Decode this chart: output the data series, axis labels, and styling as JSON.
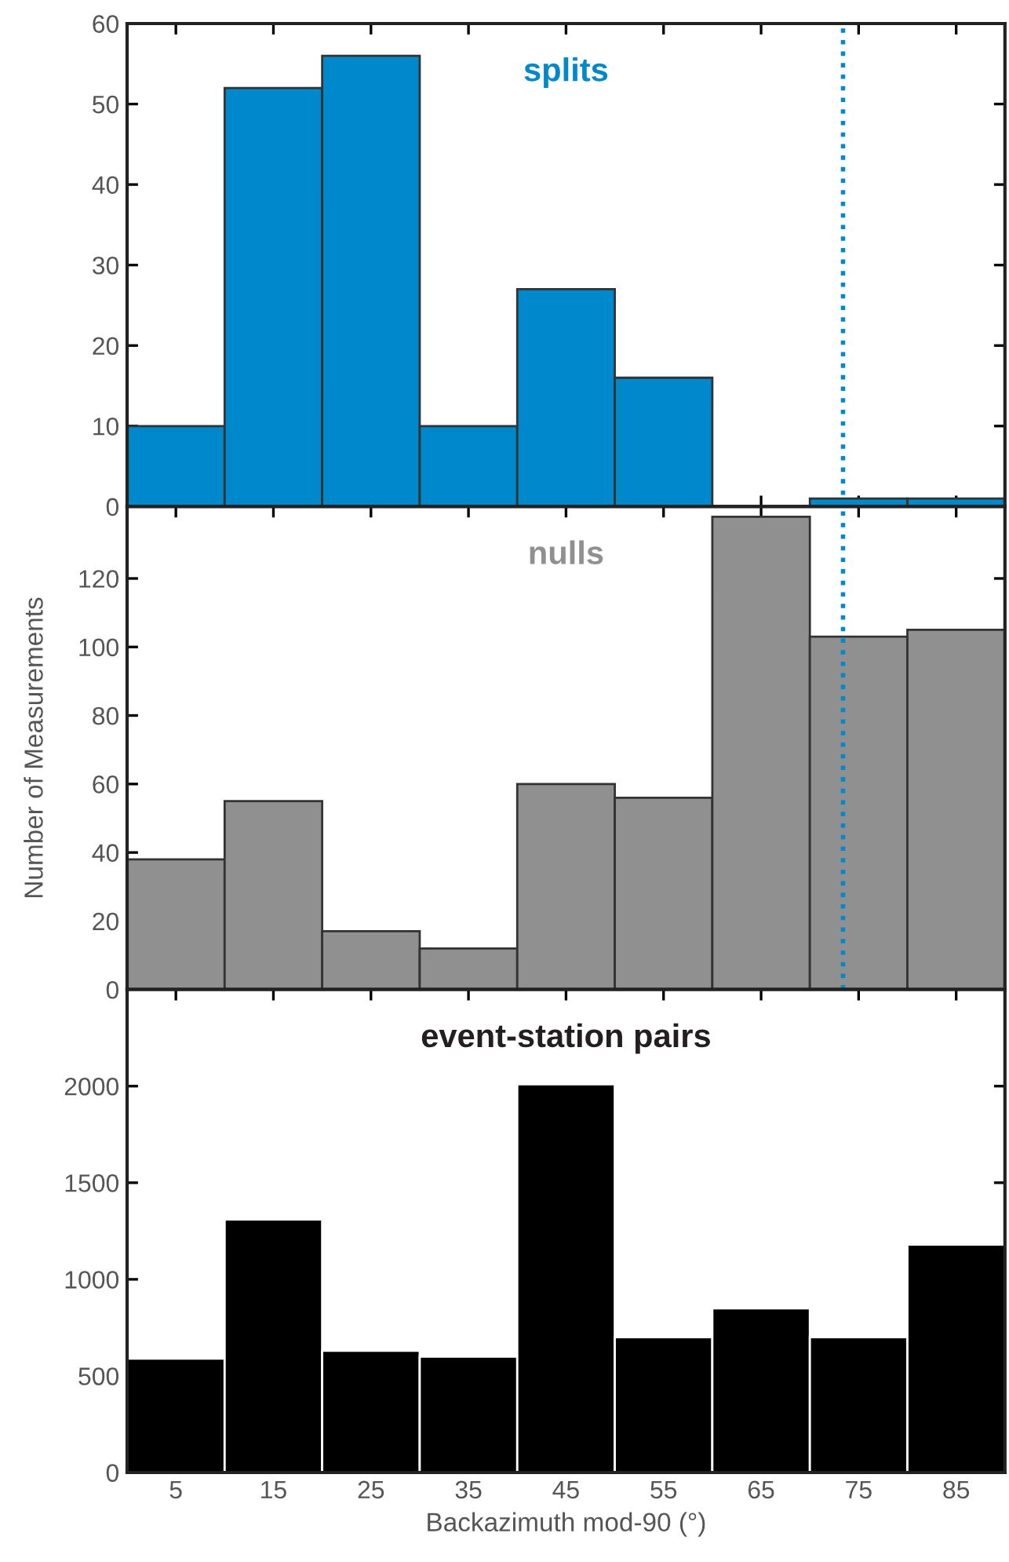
{
  "chart_data": [
    {
      "type": "histogram",
      "title": "splits",
      "bins": [
        0,
        10,
        20,
        30,
        40,
        50,
        60,
        70,
        80,
        90
      ],
      "values": [
        10,
        52,
        56,
        10,
        27,
        16,
        0,
        1,
        1
      ],
      "color": "#0088cc",
      "xlim": [
        0,
        90
      ],
      "xticks": [
        5,
        15,
        25,
        35,
        45,
        55,
        65,
        75,
        85
      ],
      "ylim": [
        0,
        60
      ],
      "yticks": [
        0,
        10,
        20,
        30,
        40,
        50,
        60
      ],
      "tick_labels": "y",
      "ref_lines": [
        {
          "axis": "x",
          "value": 73.4,
          "color": "#0088cc",
          "line_style": "dotted"
        }
      ]
    },
    {
      "type": "histogram",
      "title": "nulls",
      "ylabel": "Number of Measurements",
      "bins": [
        0,
        10,
        20,
        30,
        40,
        50,
        60,
        70,
        80,
        90
      ],
      "values": [
        38,
        55,
        17,
        12,
        60,
        56,
        138,
        103,
        105
      ],
      "color": "#909090",
      "xlim": [
        0,
        90
      ],
      "xticks": [
        5,
        15,
        25,
        35,
        45,
        55,
        65,
        75,
        85
      ],
      "ylim": [
        0,
        141
      ],
      "yticks": [
        0,
        20,
        40,
        60,
        80,
        100,
        120
      ],
      "tick_labels": "y",
      "ref_lines": [
        {
          "axis": "x",
          "value": 73.4,
          "color": "#0088cc",
          "line_style": "dotted"
        }
      ]
    },
    {
      "type": "histogram",
      "title": "event-station pairs",
      "xlabel": "Backazimuth mod-90 (°)",
      "bins": [
        0,
        10,
        20,
        30,
        40,
        50,
        60,
        70,
        80,
        90
      ],
      "values": [
        590,
        1310,
        630,
        600,
        2010,
        700,
        850,
        700,
        1180
      ],
      "color": "#000000",
      "xlim": [
        0,
        90
      ],
      "xticks": [
        5,
        15,
        25,
        35,
        45,
        55,
        65,
        75,
        85
      ],
      "ylim": [
        0,
        2500
      ],
      "yticks": [
        0,
        500,
        1000,
        1500,
        2000
      ]
    }
  ]
}
